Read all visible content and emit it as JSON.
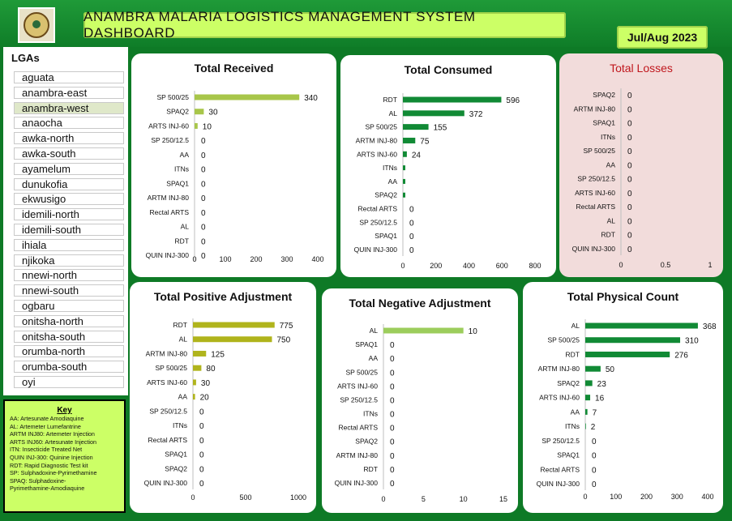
{
  "header": {
    "title": "ANAMBRA MALARIA LOGISTICS MANAGEMENT SYSTEM DASHBOARD",
    "period": "Jul/Aug 2023"
  },
  "lgas": {
    "title": "LGAs",
    "items": [
      "aguata",
      "anambra-east",
      "anambra-west",
      "anaocha",
      "awka-north",
      "awka-south",
      "ayamelum",
      "dunukofia",
      "ekwusigo",
      "idemili-north",
      "idemili-south",
      "ihiala",
      "njikoka",
      "nnewi-north",
      "nnewi-south",
      "ogbaru",
      "onitsha-north",
      "onitsha-south",
      "orumba-north",
      "orumba-south",
      "oyi"
    ],
    "selected": "anambra-west"
  },
  "key": {
    "title": "Key",
    "lines": [
      "AA: Artesunate Amodiaquine",
      "AL: Artemeter Lumefantrine",
      "ARTM INJ80: Artemeter Injection",
      "ARTS INJ60: Artesunate Injection",
      "ITN: Insecticide Treated Net",
      "QUIN INJ-300: Quinine Injection",
      "RDT: Rapid Diagnostic Test kit",
      "SP: Sulphadoxine-Pyrimethamine",
      "SPAQ: Sulphadoxine-",
      "Pyrimethamine-Amodiaquine"
    ]
  },
  "colors": {
    "received": "#a8c64a",
    "consumed": "#118a35",
    "losses": "#118a35",
    "positive": "#b0b41c",
    "negative": "#9ccd5c",
    "physical": "#118a35"
  },
  "chart_data": [
    {
      "id": "received",
      "type": "bar",
      "orientation": "horizontal",
      "title": "Total Received",
      "categories": [
        "SP 500/25",
        "SPAQ2",
        "ARTS INJ-60",
        "SP 250/12.5",
        "AA",
        "ITNs",
        "SPAQ1",
        "ARTM INJ-80",
        "Rectal ARTS",
        "AL",
        "RDT",
        "QUIN INJ-300"
      ],
      "values": [
        340,
        30,
        10,
        0,
        0,
        0,
        0,
        0,
        0,
        0,
        0,
        0
      ],
      "xlim": [
        0,
        400
      ],
      "xticks": [
        0,
        100,
        200,
        300,
        400
      ]
    },
    {
      "id": "consumed",
      "type": "bar",
      "orientation": "horizontal",
      "title": "Total Consumed",
      "categories": [
        "RDT",
        "AL",
        "SP 500/25",
        "ARTM INJ-80",
        "ARTS INJ-60",
        "ITNs",
        "AA",
        "SPAQ2",
        "Rectal ARTS",
        "SP 250/12.5",
        "SPAQ1",
        "QUIN INJ-300"
      ],
      "values": [
        596,
        372,
        155,
        75,
        24,
        null,
        null,
        null,
        0,
        0,
        0,
        0
      ],
      "labels": [
        "596",
        "372",
        "155",
        "75",
        "24",
        "",
        "",
        "",
        "0",
        "0",
        "0",
        "0"
      ],
      "xlim": [
        0,
        800
      ],
      "xticks": [
        0,
        200,
        400,
        600,
        800
      ]
    },
    {
      "id": "losses",
      "type": "bar",
      "orientation": "horizontal",
      "title": "Total Losses",
      "categories": [
        "SPAQ2",
        "ARTM INJ-80",
        "SPAQ1",
        "ITNs",
        "SP 500/25",
        "AA",
        "SP 250/12.5",
        "ARTS INJ-60",
        "Rectal ARTS",
        "AL",
        "RDT",
        "QUIN INJ-300"
      ],
      "values": [
        0,
        0,
        0,
        0,
        0,
        0,
        0,
        0,
        0,
        0,
        0,
        0
      ],
      "xlim": [
        0,
        1
      ],
      "xticks": [
        0,
        0.5,
        1
      ]
    },
    {
      "id": "positive",
      "type": "bar",
      "orientation": "horizontal",
      "title": "Total Positive Adjustment",
      "categories": [
        "RDT",
        "AL",
        "ARTM INJ-80",
        "SP 500/25",
        "ARTS INJ-60",
        "AA",
        "SP 250/12.5",
        "ITNs",
        "Rectal ARTS",
        "SPAQ1",
        "SPAQ2",
        "QUIN INJ-300"
      ],
      "values": [
        775,
        750,
        125,
        80,
        30,
        20,
        0,
        0,
        0,
        0,
        0,
        0
      ],
      "xlim": [
        0,
        1000
      ],
      "xticks": [
        0,
        500,
        1000
      ]
    },
    {
      "id": "negative",
      "type": "bar",
      "orientation": "horizontal",
      "title": "Total Negative Adjustment",
      "categories": [
        "AL",
        "SPAQ1",
        "AA",
        "SP 500/25",
        "ARTS INJ-60",
        "SP 250/12.5",
        "ITNs",
        "Rectal ARTS",
        "SPAQ2",
        "ARTM INJ-80",
        "RDT",
        "QUIN INJ-300"
      ],
      "values": [
        10,
        0,
        0,
        0,
        0,
        0,
        0,
        0,
        0,
        0,
        0,
        0
      ],
      "xlim": [
        0,
        15
      ],
      "xticks": [
        0,
        5,
        10,
        15
      ]
    },
    {
      "id": "physical",
      "type": "bar",
      "orientation": "horizontal",
      "title": "Total Physical Count",
      "categories": [
        "AL",
        "SP 500/25",
        "RDT",
        "ARTM INJ-80",
        "SPAQ2",
        "ARTS INJ-60",
        "AA",
        "ITNs",
        "SP 250/12.5",
        "SPAQ1",
        "Rectal ARTS",
        "QUIN INJ-300"
      ],
      "values": [
        368,
        310,
        276,
        50,
        23,
        16,
        7,
        2,
        0,
        0,
        0,
        0
      ],
      "xlim": [
        0,
        400
      ],
      "xticks": [
        0,
        100,
        200,
        300,
        400
      ]
    }
  ]
}
